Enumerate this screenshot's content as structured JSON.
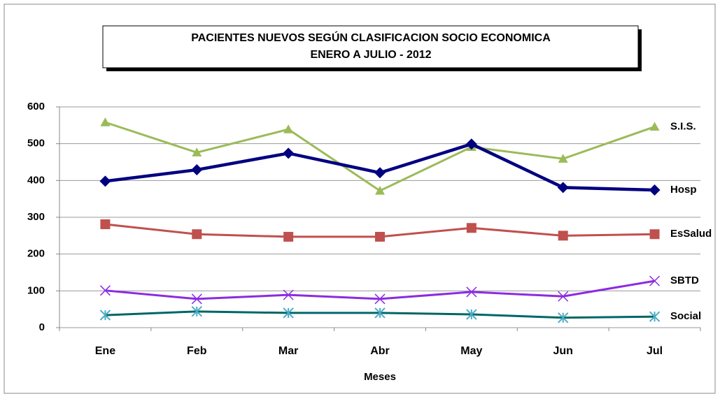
{
  "chart_data": {
    "type": "line",
    "title": "PACIENTES NUEVOS SEGÚN CLASIFICACION  SOCIO ECONOMICA",
    "subtitle": "ENERO A JULIO  -  2012",
    "x_label": "Meses",
    "categories": [
      "Ene",
      "Feb",
      "Mar",
      "Abr",
      "May",
      "Jun",
      "Jul"
    ],
    "series": [
      {
        "name": "S.I.S.",
        "color": "#9bbb59",
        "marker": "triangle",
        "values": [
          558,
          476,
          539,
          372,
          491,
          459,
          546
        ]
      },
      {
        "name": "Hosp",
        "color": "#000080",
        "marker": "diamond",
        "values": [
          398,
          429,
          474,
          421,
          499,
          381,
          374
        ]
      },
      {
        "name": "EsSalud",
        "color": "#c0504d",
        "marker": "square",
        "values": [
          281,
          254,
          247,
          247,
          271,
          250,
          254
        ]
      },
      {
        "name": "SBTD",
        "color": "#8b2be2",
        "marker": "x",
        "values": [
          101,
          78,
          89,
          78,
          97,
          85,
          127
        ]
      },
      {
        "name": "Social",
        "color": "#006666",
        "marker": "star",
        "values": [
          34,
          44,
          40,
          40,
          36,
          27,
          30
        ]
      }
    ],
    "ylim": [
      0,
      600
    ],
    "yticks": [
      0,
      100,
      200,
      300,
      400,
      500,
      600
    ],
    "grid": true
  }
}
